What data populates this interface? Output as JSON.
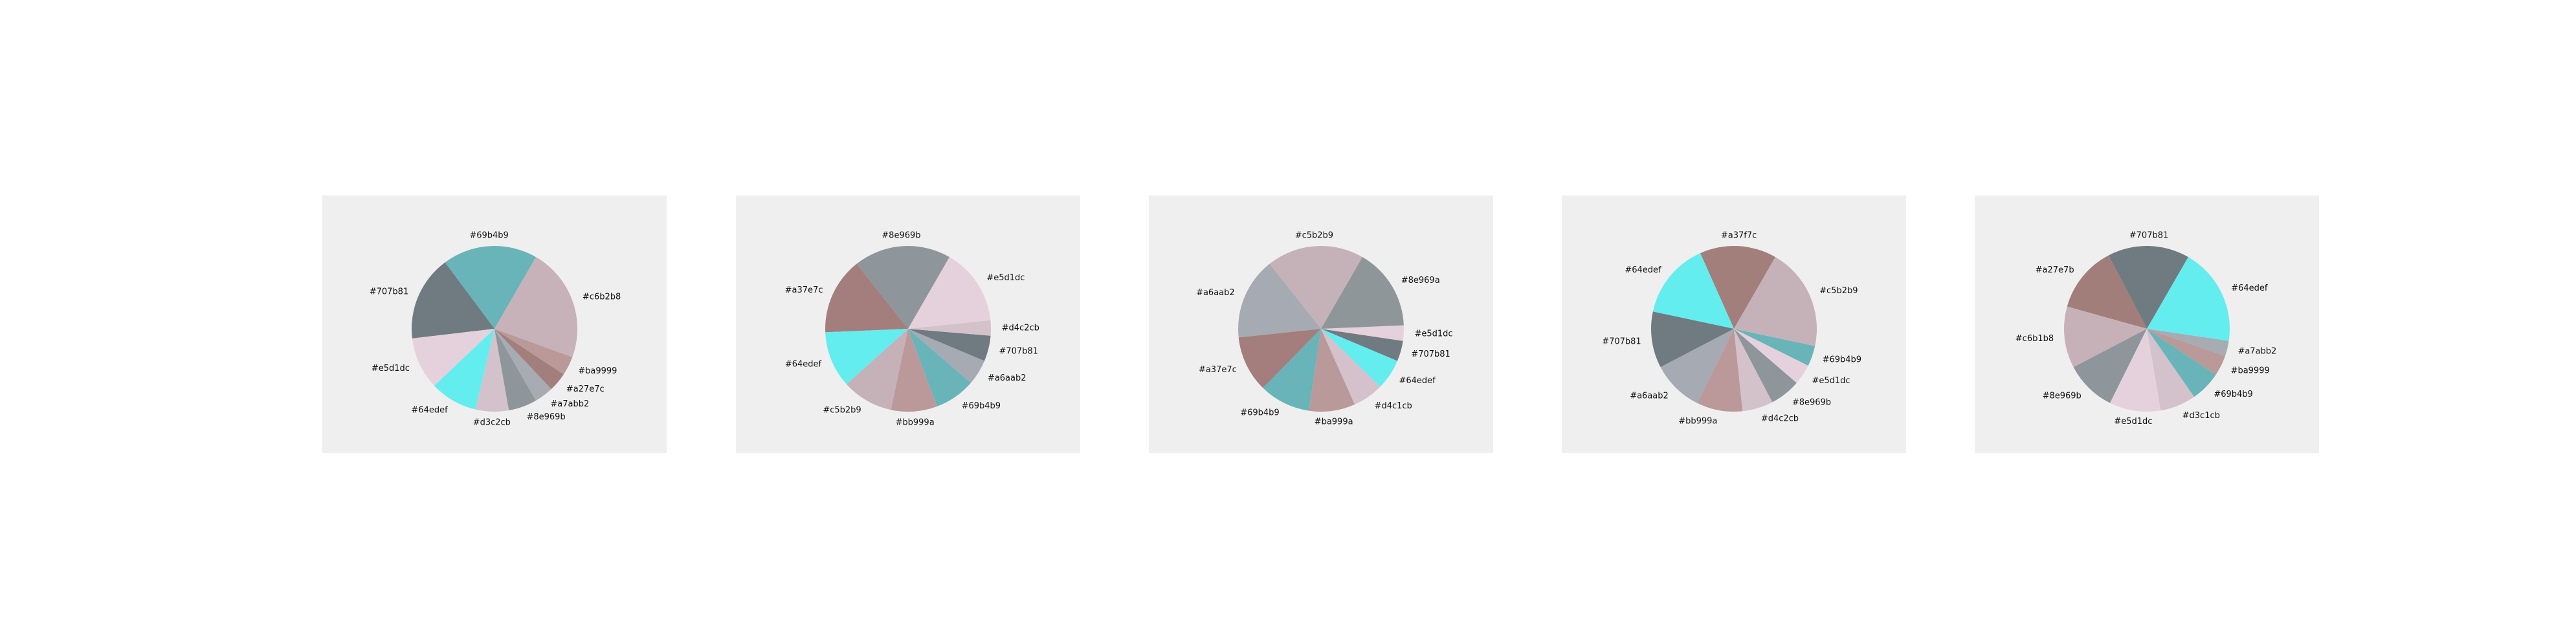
{
  "chart_data": [
    {
      "type": "pie",
      "title": "",
      "slices": [
        {
          "label": "#69b4b9",
          "value": 20,
          "color": "#69b4b9"
        },
        {
          "label": "#707b81",
          "value": 18,
          "color": "#707b81"
        },
        {
          "label": "#e5d1dc",
          "value": 11,
          "color": "#e5d1dc"
        },
        {
          "label": "#64edef",
          "value": 10,
          "color": "#64edef"
        },
        {
          "label": "#d3c2cb",
          "value": 7,
          "color": "#d3c2cb"
        },
        {
          "label": "#8e969b",
          "value": 6,
          "color": "#8e969b"
        },
        {
          "label": "#a7abb2",
          "value": 4,
          "color": "#a7abb2"
        },
        {
          "label": "#a27e7c",
          "value": 4,
          "color": "#a27e7c"
        },
        {
          "label": "#ba9999",
          "value": 4,
          "color": "#ba9999"
        },
        {
          "label": "#c6b2b8",
          "value": 24,
          "color": "#c6b2b8"
        }
      ]
    },
    {
      "type": "pie",
      "title": "",
      "slices": [
        {
          "label": "#8e969b",
          "value": 19,
          "color": "#8e969b"
        },
        {
          "label": "#a37e7c",
          "value": 15,
          "color": "#a37e7c"
        },
        {
          "label": "#64edef",
          "value": 11,
          "color": "#64edef"
        },
        {
          "label": "#c5b2b9",
          "value": 10,
          "color": "#c5b2b9"
        },
        {
          "label": "#bb999a",
          "value": 9,
          "color": "#bb999a"
        },
        {
          "label": "#69b4b9",
          "value": 8,
          "color": "#69b4b9"
        },
        {
          "label": "#a6aab2",
          "value": 5,
          "color": "#a6aab2"
        },
        {
          "label": "#707b81",
          "value": 5,
          "color": "#707b81"
        },
        {
          "label": "#d4c2cb",
          "value": 3,
          "color": "#d4c2cb"
        },
        {
          "label": "#e5d1dc",
          "value": 15,
          "color": "#e5d1dc"
        }
      ]
    },
    {
      "type": "pie",
      "title": "",
      "slices": [
        {
          "label": "#c5b2b9",
          "value": 19,
          "color": "#c5b2b9"
        },
        {
          "label": "#a6aab2",
          "value": 16,
          "color": "#a6aab2"
        },
        {
          "label": "#a37e7c",
          "value": 11,
          "color": "#a37e7c"
        },
        {
          "label": "#69b4b9",
          "value": 10,
          "color": "#69b4b9"
        },
        {
          "label": "#ba999a",
          "value": 9,
          "color": "#ba999a"
        },
        {
          "label": "#d4c1cb",
          "value": 6,
          "color": "#d4c1cb"
        },
        {
          "label": "#64edef",
          "value": 6,
          "color": "#64edef"
        },
        {
          "label": "#707b81",
          "value": 4,
          "color": "#707b81"
        },
        {
          "label": "#e5d1dc",
          "value": 3,
          "color": "#e5d1dc"
        },
        {
          "label": "#8e969a",
          "value": 16,
          "color": "#8e969a"
        }
      ]
    },
    {
      "type": "pie",
      "title": "",
      "slices": [
        {
          "label": "#a37f7c",
          "value": 15,
          "color": "#a37f7c"
        },
        {
          "label": "#64edef",
          "value": 15,
          "color": "#64edef"
        },
        {
          "label": "#707b81",
          "value": 11,
          "color": "#707b81"
        },
        {
          "label": "#a6aab2",
          "value": 10,
          "color": "#a6aab2"
        },
        {
          "label": "#bb999a",
          "value": 9,
          "color": "#bb999a"
        },
        {
          "label": "#d4c2cb",
          "value": 6,
          "color": "#d4c2cb"
        },
        {
          "label": "#8e969b",
          "value": 6,
          "color": "#8e969b"
        },
        {
          "label": "#e5d1dc",
          "value": 4,
          "color": "#e5d1dc"
        },
        {
          "label": "#69b4b9",
          "value": 4,
          "color": "#69b4b9"
        },
        {
          "label": "#c5b2b9",
          "value": 20,
          "color": "#c5b2b9"
        }
      ]
    },
    {
      "type": "pie",
      "title": "",
      "slices": [
        {
          "label": "#707b81",
          "value": 16,
          "color": "#707b81"
        },
        {
          "label": "#a27e7b",
          "value": 13,
          "color": "#a27e7b"
        },
        {
          "label": "#c6b1b8",
          "value": 12,
          "color": "#c6b1b8"
        },
        {
          "label": "#8e969b",
          "value": 10,
          "color": "#8e969b"
        },
        {
          "label": "#e5d1dc",
          "value": 10,
          "color": "#e5d1dc"
        },
        {
          "label": "#d3c1cb",
          "value": 7,
          "color": "#d3c1cb"
        },
        {
          "label": "#69b4b9",
          "value": 6,
          "color": "#69b4b9"
        },
        {
          "label": "#ba9999",
          "value": 4,
          "color": "#ba9999"
        },
        {
          "label": "#a7abb2",
          "value": 3,
          "color": "#a7abb2"
        },
        {
          "label": "#64edef",
          "value": 19,
          "color": "#64edef"
        }
      ]
    }
  ]
}
